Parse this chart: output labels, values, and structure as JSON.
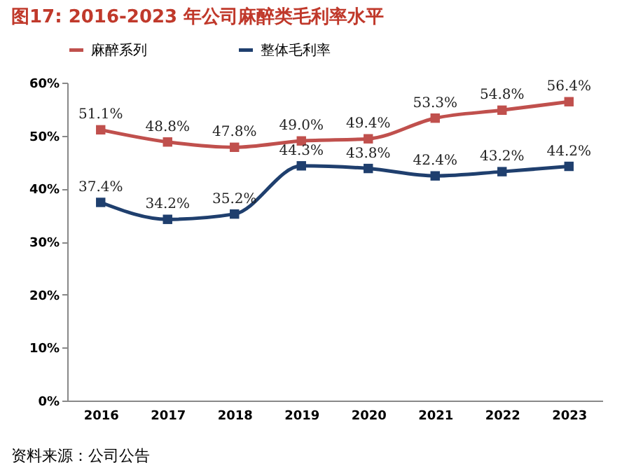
{
  "chart_data": {
    "type": "line",
    "title": "图17:   2016-2023 年公司麻醉类毛利率水平",
    "annotations": [
      "资料来源：公司公告"
    ],
    "categories": [
      "2016",
      "2017",
      "2018",
      "2019",
      "2020",
      "2021",
      "2022",
      "2023"
    ],
    "series": [
      {
        "name": "麻醉系列",
        "color": "#c0504d",
        "values": [
          51.1,
          48.8,
          47.8,
          49.0,
          49.4,
          53.3,
          54.8,
          56.4
        ],
        "value_labels": [
          "51.1%",
          "48.8%",
          "47.8%",
          "49.0%",
          "49.4%",
          "53.3%",
          "54.8%",
          "56.4%"
        ]
      },
      {
        "name": "整体毛利率",
        "color": "#1f3f6e",
        "values": [
          37.4,
          34.2,
          35.2,
          44.3,
          43.8,
          42.4,
          43.2,
          44.2
        ],
        "value_labels": [
          "37.4%",
          "34.2%",
          "35.2%",
          "44.3%",
          "43.8%",
          "42.4%",
          "43.2%",
          "44.2%"
        ]
      }
    ],
    "ylim": [
      0,
      60
    ],
    "yticks": [
      {
        "value": 0,
        "label": "0%"
      },
      {
        "value": 10,
        "label": "10%"
      },
      {
        "value": 20,
        "label": "20%"
      },
      {
        "value": 30,
        "label": "30%"
      },
      {
        "value": 40,
        "label": "40%"
      },
      {
        "value": 50,
        "label": "50%"
      },
      {
        "value": 60,
        "label": "60%"
      }
    ],
    "grid": false,
    "legend": "top",
    "marker": "square",
    "line_style": "solid"
  }
}
